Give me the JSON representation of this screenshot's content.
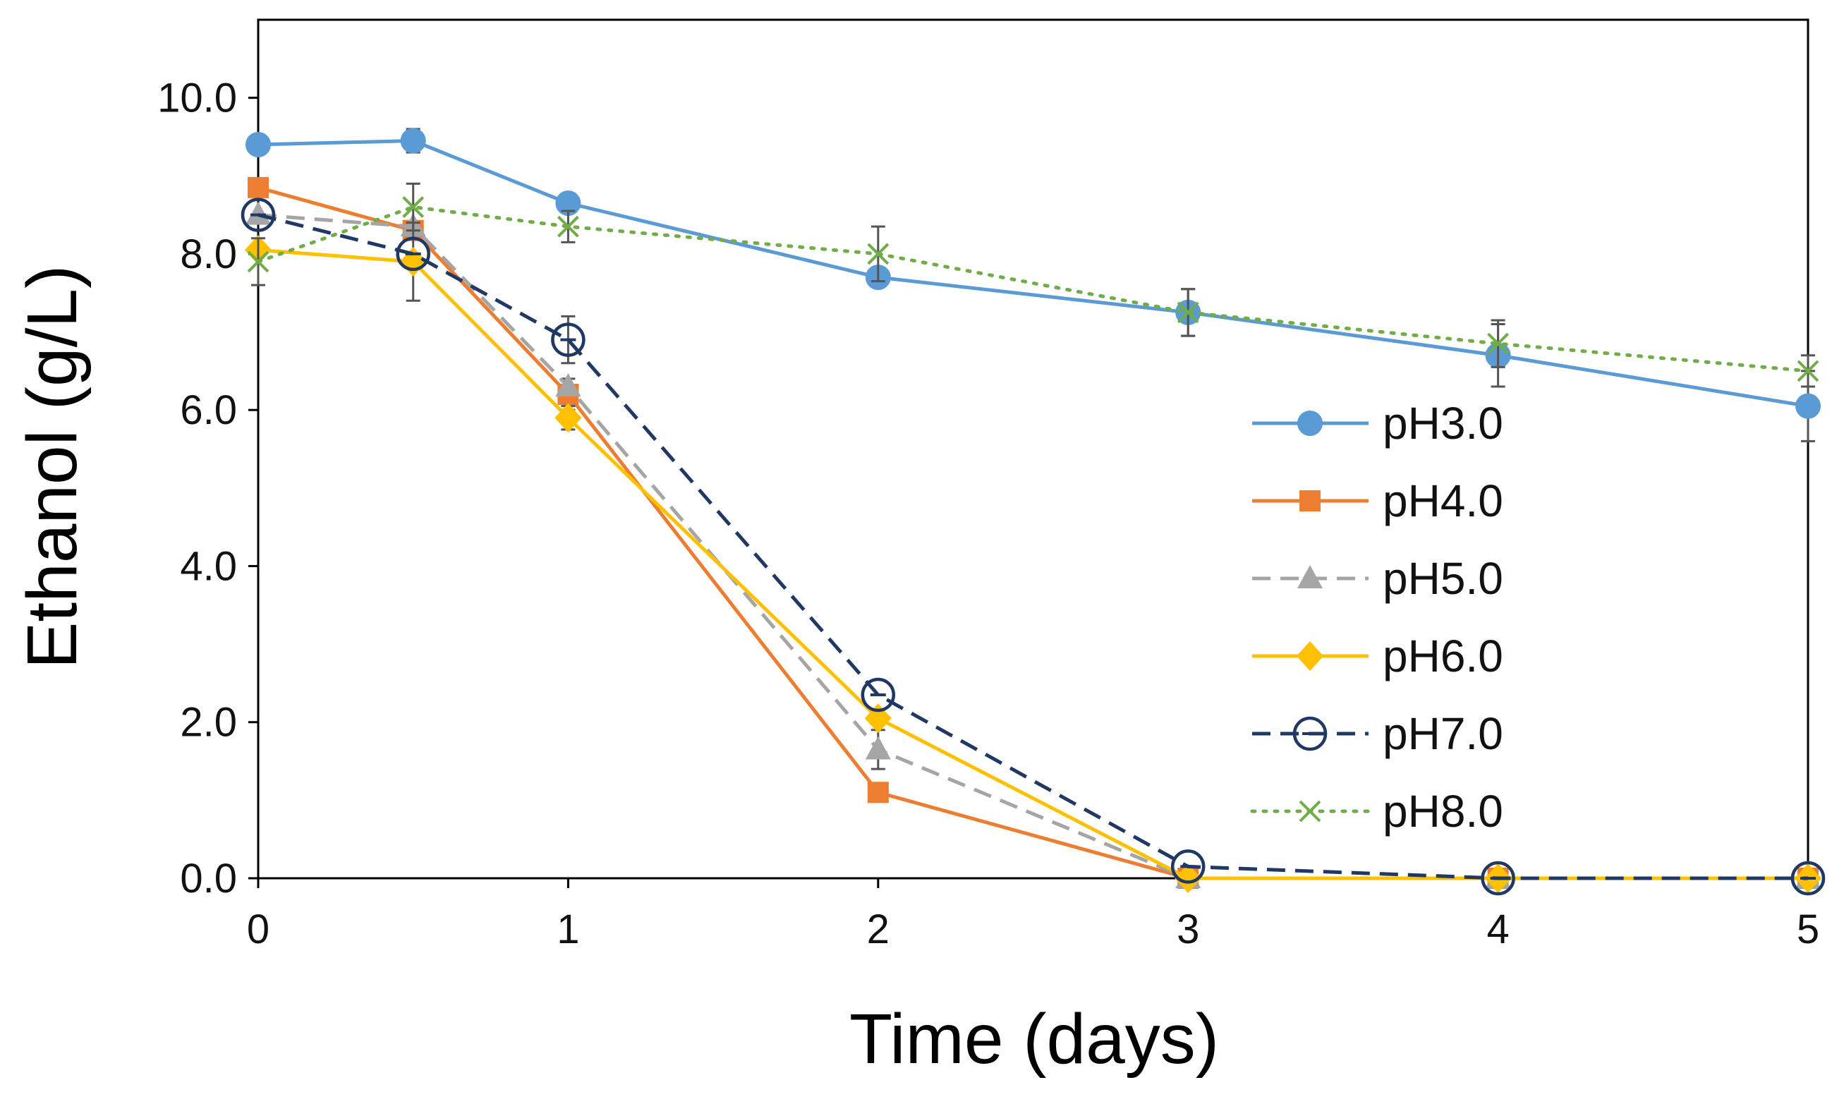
{
  "chart_data": {
    "type": "line",
    "title": "",
    "xlabel": "Time (days)",
    "ylabel": "Ethanol (g/L)",
    "xlim": [
      0,
      5
    ],
    "ylim": [
      0,
      11
    ],
    "xticks": [
      0,
      1,
      2,
      3,
      4,
      5
    ],
    "xtick_labels": [
      "0",
      "1",
      "2",
      "3",
      "4",
      "5"
    ],
    "yticks": [
      0,
      2,
      4,
      6,
      8,
      10
    ],
    "ytick_labels": [
      "0.0",
      "2.0",
      "4.0",
      "6.0",
      "8.0",
      "10.0"
    ],
    "grid": false,
    "legend_position": "right-center",
    "series": [
      {
        "name": "pH3.0",
        "color": "#5B9BD5",
        "marker": "circle",
        "line_style": "solid",
        "x": [
          0,
          0.5,
          1,
          2,
          3,
          4,
          5
        ],
        "y": [
          9.4,
          9.45,
          8.65,
          7.7,
          7.25,
          6.7,
          6.05
        ],
        "err": [
          0.0,
          0.15,
          0.12,
          0.0,
          0.3,
          0.4,
          0.45
        ]
      },
      {
        "name": "pH4.0",
        "color": "#ED7D31",
        "marker": "square",
        "line_style": "solid",
        "x": [
          0,
          0.5,
          1,
          2,
          3,
          4,
          5
        ],
        "y": [
          8.85,
          8.3,
          6.2,
          1.1,
          0.0,
          0.0,
          0.0
        ],
        "err": [
          0.1,
          0.0,
          0.2,
          0.1,
          0.0,
          0.0,
          0.0
        ]
      },
      {
        "name": "pH5.0",
        "color": "#A5A5A5",
        "marker": "triangle",
        "line_style": "dashed",
        "x": [
          0,
          0.5,
          1,
          2,
          3,
          4,
          5
        ],
        "y": [
          8.5,
          8.35,
          6.3,
          1.65,
          0.0,
          0.0,
          0.0
        ],
        "err": [
          0.0,
          0.0,
          0.0,
          0.25,
          0.0,
          0.0,
          0.0
        ]
      },
      {
        "name": "pH6.0",
        "color": "#FFC000",
        "marker": "diamond",
        "line_style": "solid",
        "x": [
          0,
          0.5,
          1,
          2,
          3,
          4,
          5
        ],
        "y": [
          8.05,
          7.9,
          5.9,
          2.05,
          0.0,
          0.0,
          0.0
        ],
        "err": [
          0.0,
          0.5,
          0.15,
          0.0,
          0.0,
          0.0,
          0.0
        ]
      },
      {
        "name": "pH7.0",
        "color": "#1F3864",
        "marker": "open-circle",
        "line_style": "dashed",
        "x": [
          0,
          0.5,
          1,
          2,
          3,
          4,
          5
        ],
        "y": [
          8.5,
          8.0,
          6.9,
          2.35,
          0.15,
          0.0,
          0.0
        ],
        "err": [
          0.0,
          0.0,
          0.3,
          0.0,
          0.0,
          0.0,
          0.0
        ]
      },
      {
        "name": "pH8.0",
        "color": "#70AD47",
        "marker": "x",
        "line_style": "dotted",
        "x": [
          0,
          0.5,
          1,
          2,
          3,
          4,
          5
        ],
        "y": [
          7.9,
          8.6,
          8.35,
          8.0,
          7.25,
          6.85,
          6.5
        ],
        "err": [
          0.3,
          0.3,
          0.2,
          0.35,
          0.3,
          0.3,
          0.2
        ]
      }
    ]
  }
}
